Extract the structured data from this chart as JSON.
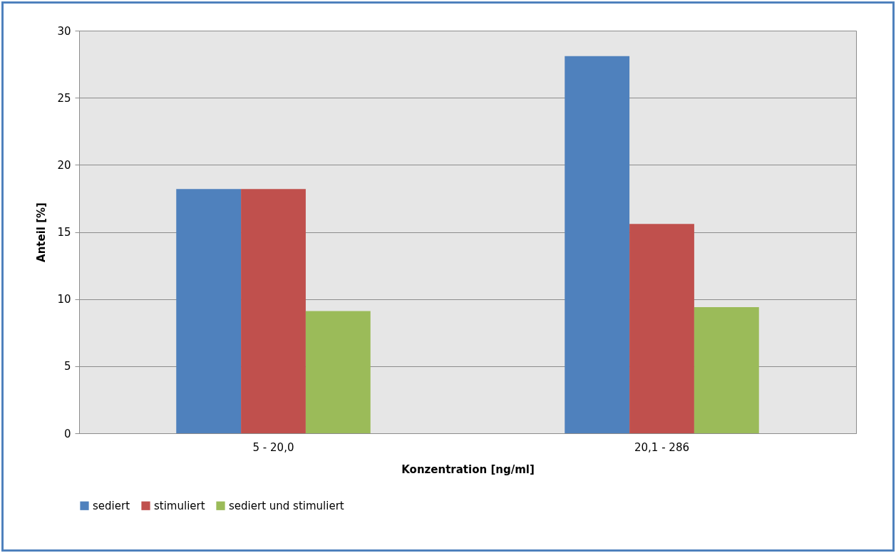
{
  "chart_data": {
    "type": "bar",
    "xlabel": "Konzentration [ng/ml]",
    "ylabel": "Anteil [%]",
    "categories": [
      "5 - 20,0",
      "20,1 - 286"
    ],
    "series": [
      {
        "name": "sediert",
        "color": "#4f81bd",
        "values": [
          18.2,
          28.1
        ]
      },
      {
        "name": "stimuliert",
        "color": "#c0504d",
        "values": [
          18.2,
          15.6
        ]
      },
      {
        "name": "sediert und stimuliert",
        "color": "#9bbb59",
        "values": [
          9.1,
          9.4
        ]
      }
    ],
    "ylim": [
      0,
      30
    ],
    "yticks": [
      0,
      5,
      10,
      15,
      20,
      25,
      30
    ],
    "grid": "y",
    "legend": "bottom"
  }
}
